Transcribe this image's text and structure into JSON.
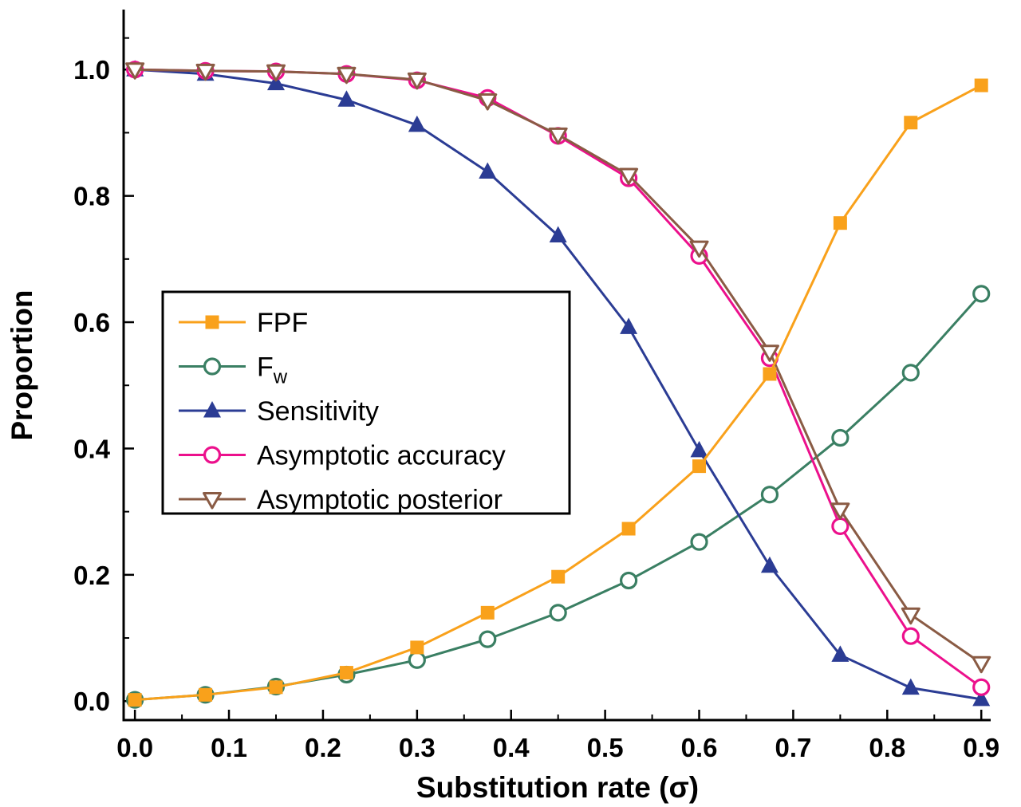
{
  "figure": {
    "background_color": "#ffffff",
    "axis_color": "#000000"
  },
  "chart_data": {
    "type": "line",
    "xlabel": "Substitution rate (σ)",
    "ylabel": "Proportion",
    "xlim": [
      -0.012,
      0.91
    ],
    "ylim": [
      -0.03,
      1.095
    ],
    "grid": false,
    "legend_position": "center-left",
    "x_ticks": [
      0,
      0.1,
      0.2,
      0.3,
      0.4,
      0.5,
      0.6,
      0.7,
      0.8,
      0.9
    ],
    "x_tick_labels": [
      "0.0",
      "0.1",
      "0.2",
      "0.3",
      "0.4",
      "0.5",
      "0.6",
      "0.7",
      "0.8",
      "0.9"
    ],
    "x_minor_ticks": [
      0.05,
      0.15,
      0.25,
      0.35,
      0.45,
      0.55,
      0.65,
      0.75,
      0.85
    ],
    "y_ticks": [
      0,
      0.2,
      0.4,
      0.6,
      0.8,
      1.0
    ],
    "y_tick_labels": [
      "0.0",
      "0.2",
      "0.4",
      "0.6",
      "0.8",
      "1.0"
    ],
    "y_minor_ticks": [
      0.1,
      0.3,
      0.5,
      0.7,
      0.9,
      1.05
    ],
    "x": [
      0,
      0.075,
      0.15,
      0.225,
      0.3,
      0.375,
      0.45,
      0.525,
      0.6,
      0.675,
      0.75,
      0.825,
      0.9
    ],
    "draw_order": [
      1,
      2,
      3,
      4,
      0
    ],
    "series": [
      {
        "id": "fpf",
        "name": "FPF",
        "label": "FPF",
        "color": "#F9A11B",
        "marker": "square-filled",
        "values": [
          0.002,
          0.01,
          0.022,
          0.045,
          0.085,
          0.14,
          0.197,
          0.273,
          0.372,
          0.518,
          0.757,
          0.916,
          0.975
        ]
      },
      {
        "id": "fw",
        "name": "Fw",
        "label": "F",
        "label_sub": "w",
        "color": "#3A7F63",
        "marker": "circle-open",
        "values": [
          0.002,
          0.01,
          0.023,
          0.042,
          0.065,
          0.098,
          0.14,
          0.191,
          0.252,
          0.327,
          0.417,
          0.52,
          0.645
        ]
      },
      {
        "id": "sensitivity",
        "name": "Sensitivity",
        "label": "Sensitivity",
        "color": "#2B3C94",
        "marker": "triangle-up-filled",
        "values": [
          1.0,
          0.993,
          0.978,
          0.952,
          0.912,
          0.838,
          0.737,
          0.592,
          0.397,
          0.214,
          0.073,
          0.021,
          0.003
        ]
      },
      {
        "id": "asymptotic-accuracy",
        "name": "Asymptotic accuracy",
        "label": "Asymptotic accuracy",
        "color": "#EC108C",
        "marker": "circle-open",
        "values": [
          1.0,
          0.998,
          0.997,
          0.993,
          0.983,
          0.955,
          0.895,
          0.828,
          0.705,
          0.543,
          0.277,
          0.103,
          0.022
        ]
      },
      {
        "id": "asymptotic-posterior",
        "name": "Asymptotic posterior",
        "label": "Asymptotic posterior",
        "color": "#8A5B44",
        "marker": "triangle-down-open",
        "values": [
          1.0,
          0.998,
          0.997,
          0.993,
          0.984,
          0.951,
          0.897,
          0.833,
          0.718,
          0.553,
          0.303,
          0.137,
          0.06
        ]
      }
    ]
  }
}
